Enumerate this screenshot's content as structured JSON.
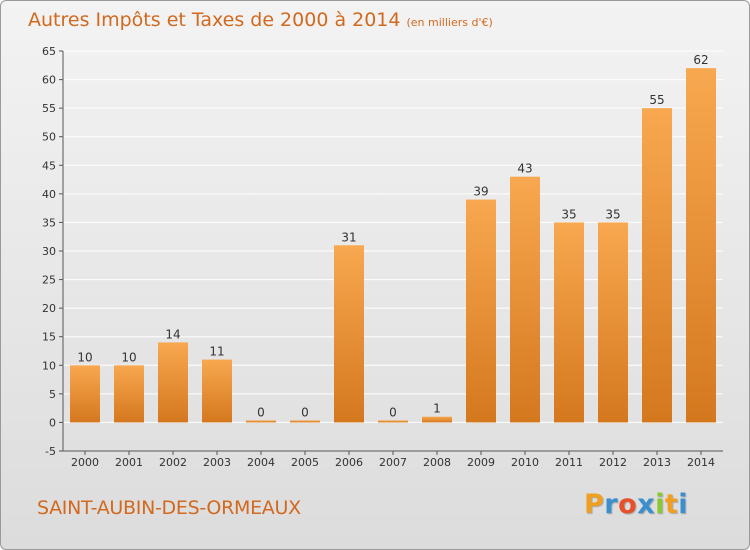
{
  "header": {
    "title": "Autres Impôts et Taxes de 2000 à 2014",
    "subtitle": "(en milliers d'€)"
  },
  "footer": {
    "commune": "SAINT-AUBIN-DES-ORMEAUX",
    "logo": {
      "letters": [
        "P",
        "r",
        "o",
        "x",
        "i",
        "t",
        "i"
      ],
      "colors": [
        "#f0a020",
        "#3a8fd0",
        "#e8502a",
        "#3a8fd0",
        "#8ac832",
        "#f0a020",
        "#3a8fd0"
      ]
    }
  },
  "colors": {
    "text_accent": "#d2691e",
    "bar_light": "#f8a850",
    "bar_dark": "#d4781e",
    "grid": "#ffffff",
    "axis": "#555555"
  },
  "chart_data": {
    "type": "bar",
    "categories": [
      "2000",
      "2001",
      "2002",
      "2003",
      "2004",
      "2005",
      "2006",
      "2007",
      "2008",
      "2009",
      "2010",
      "2011",
      "2012",
      "2013",
      "2014"
    ],
    "values": [
      10,
      10,
      14,
      11,
      0,
      0,
      31,
      0,
      1,
      39,
      43,
      35,
      35,
      55,
      62
    ],
    "data_labels": [
      "10",
      "10",
      "14",
      "11",
      "0",
      "0",
      "31",
      "0",
      "1",
      "39",
      "43",
      "35",
      "35",
      "55",
      "62"
    ],
    "yticks": [
      -5,
      0,
      5,
      10,
      15,
      20,
      25,
      30,
      35,
      40,
      45,
      50,
      55,
      60,
      65
    ],
    "ylim": [
      -5,
      65
    ],
    "grid": true,
    "legend": "none"
  }
}
